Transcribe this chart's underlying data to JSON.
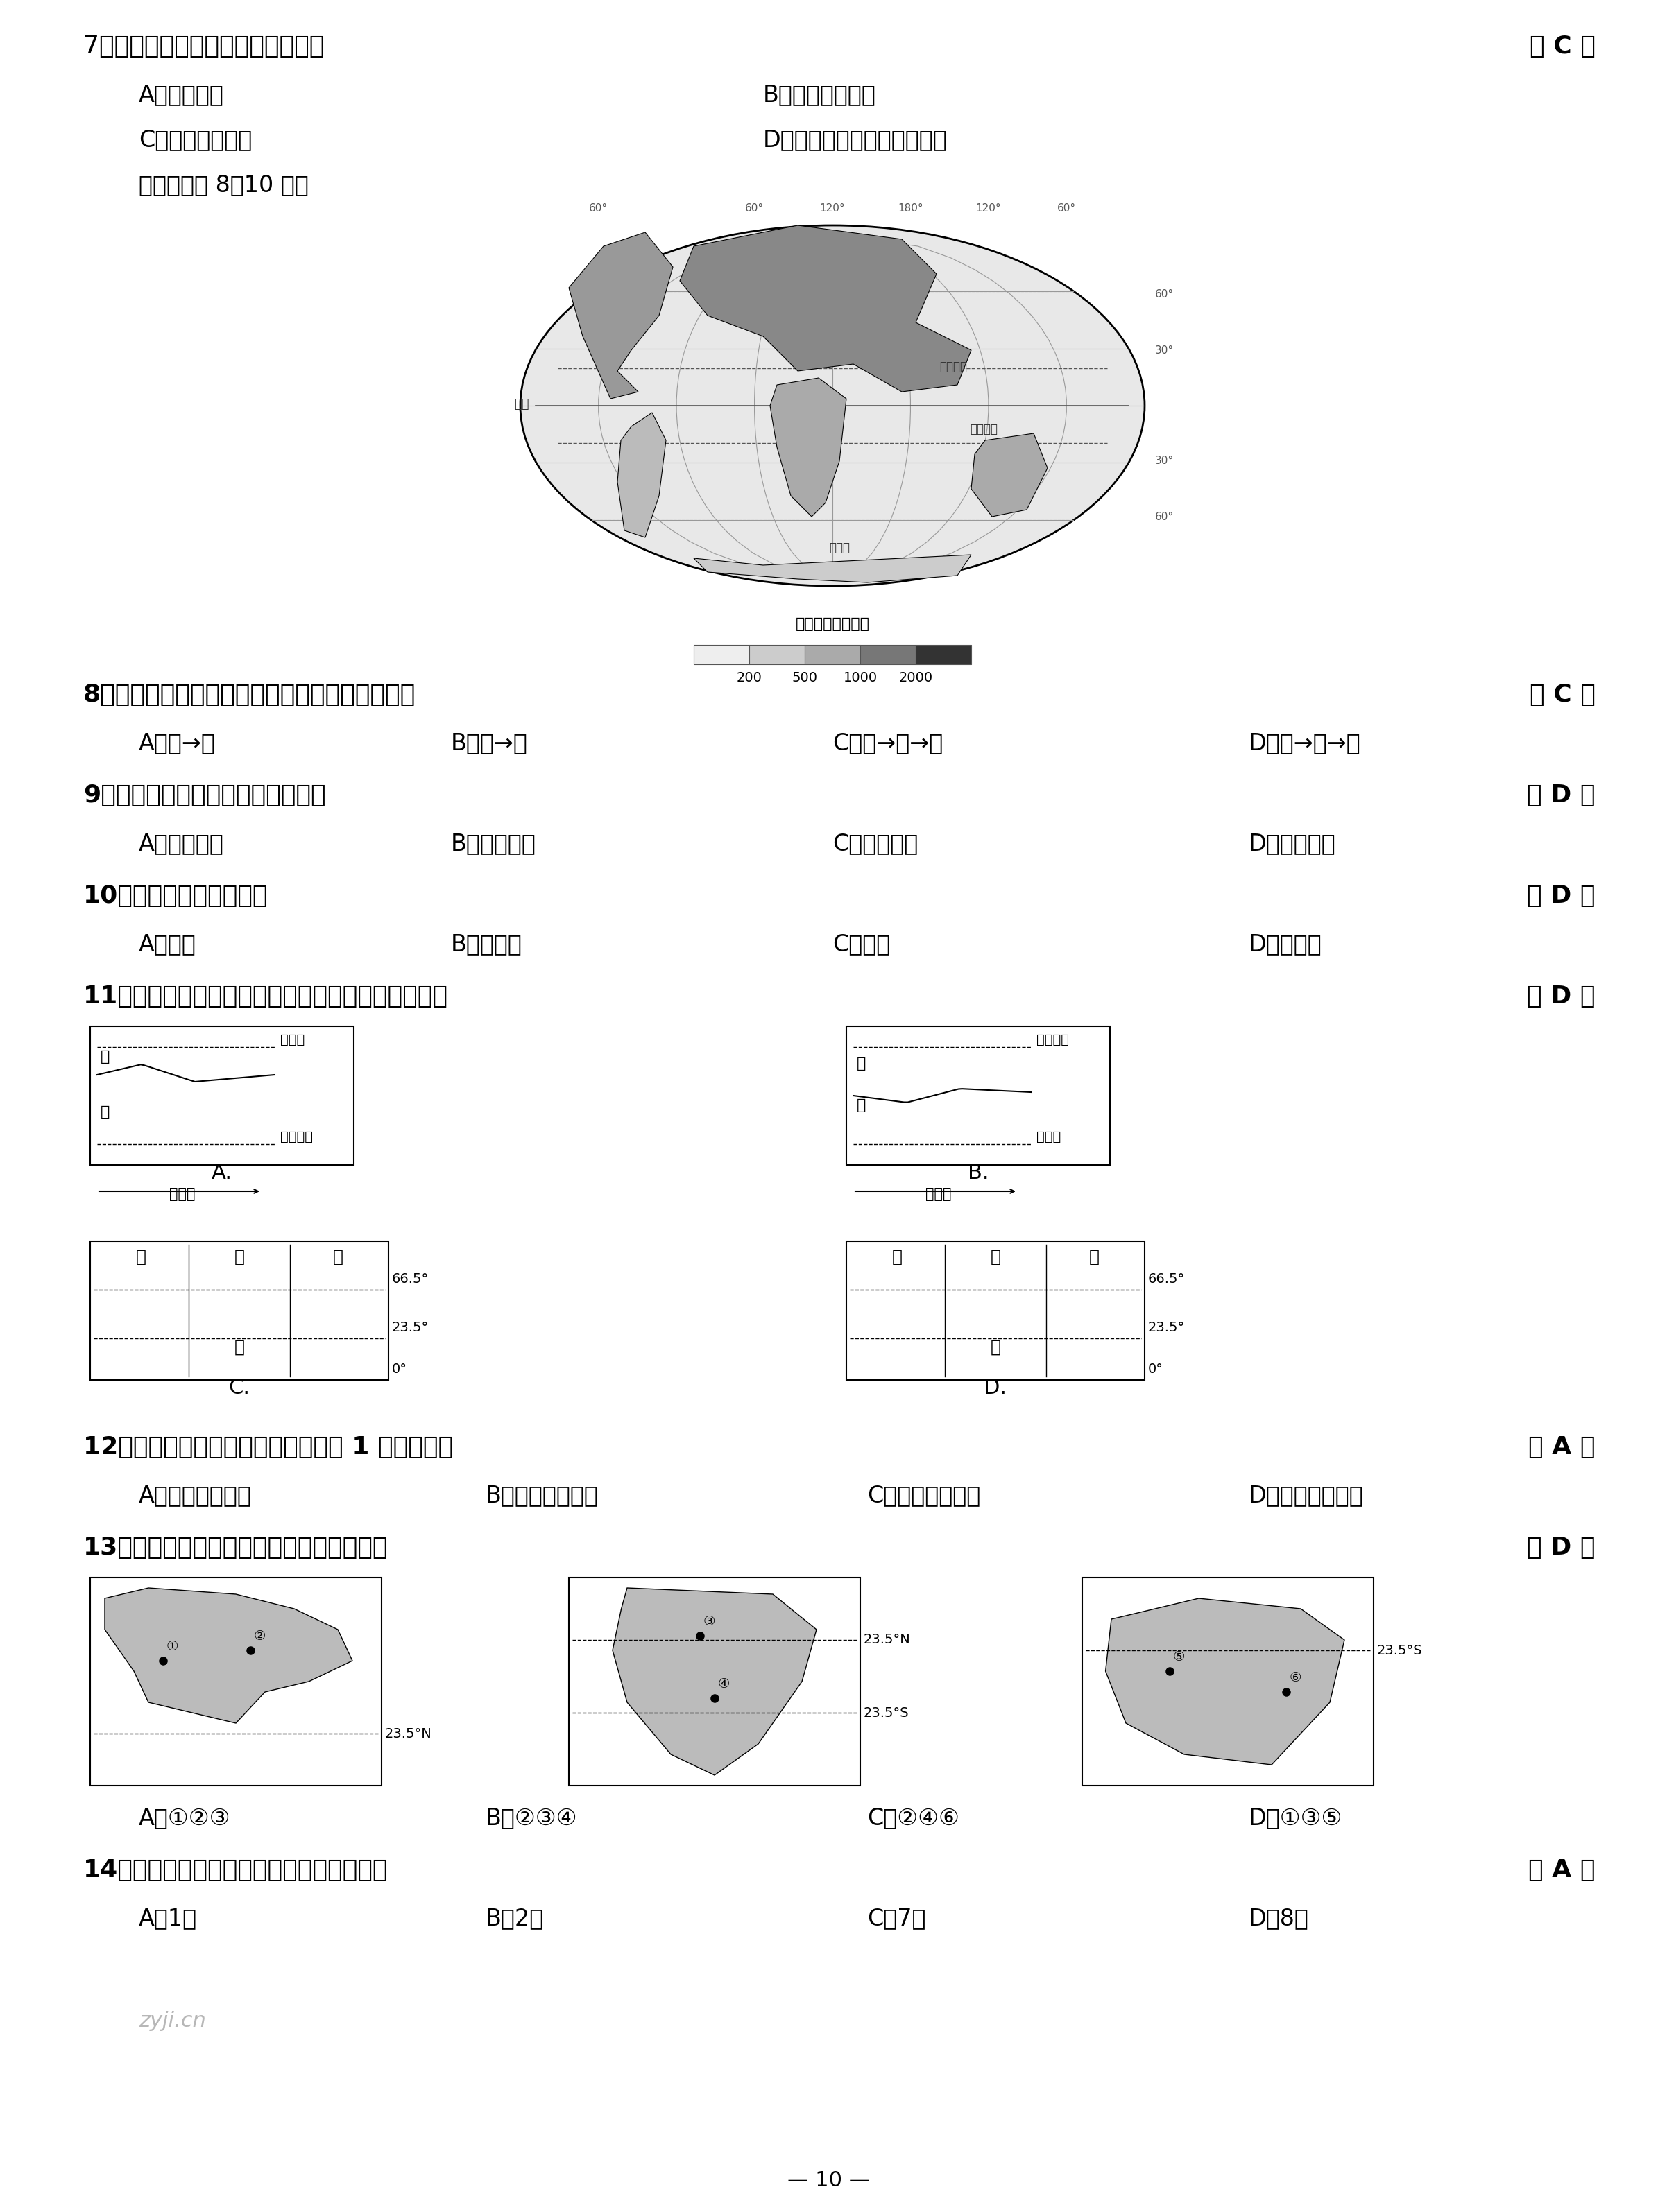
{
  "page_number": "10",
  "background_color": "#ffffff",
  "text_color": "#000000",
  "questions": [
    {
      "number": "7",
      "text": "下列地区中，年降水量最多的是",
      "answer": "C",
      "options": [
        {
          "label": "A",
          "text": "极地地区"
        },
        {
          "label": "B",
          "text": "青藏高原地区"
        },
        {
          "label": "C",
          "text": "亚洲的东南部"
        },
        {
          "label": "D",
          "text": "北回归线附近的大陆西岸"
        }
      ],
      "has_instruction": true,
      "instruction": "读图，完成 8～10 题。"
    },
    {
      "number": "8",
      "text": "亚欧大陆的温带地区自西向东降水变化规律是",
      "answer": "C",
      "options": [
        {
          "label": "A",
          "text": "多→少"
        },
        {
          "label": "B",
          "text": "少→多"
        },
        {
          "label": "C",
          "text": "多→少→多"
        },
        {
          "label": "D",
          "text": "少→多→少"
        }
      ]
    },
    {
      "number": "9",
      "text": "影响这一规律形成的主要因素是",
      "answer": "D",
      "options": [
        {
          "label": "A",
          "text": "纬度因素"
        },
        {
          "label": "B",
          "text": "地形因素"
        },
        {
          "label": "C",
          "text": "洋流因素"
        },
        {
          "label": "D",
          "text": "海陆因素"
        }
      ]
    },
    {
      "number": "10",
      "text": "降水量最少的大洲是",
      "answer": "D",
      "options": [
        {
          "label": "A",
          "text": "非洲"
        },
        {
          "label": "B",
          "text": "大洋洲"
        },
        {
          "label": "C",
          "text": "亚洲"
        },
        {
          "label": "D",
          "text": "南极洲"
        }
      ]
    },
    {
      "number": "11",
      "text": "关于世界气温、降水的分布规律，图示正确的是",
      "answer": "D",
      "options": [
        {
          "label": "A",
          "text": ""
        },
        {
          "label": "B",
          "text": ""
        },
        {
          "label": "C",
          "text": ""
        },
        {
          "label": "D",
          "text": ""
        }
      ],
      "has_diagrams": true
    },
    {
      "number": "12",
      "text": "一般来说，北温带同纬度的地区 1 月平均气温",
      "answer": "A",
      "options": [
        {
          "label": "A",
          "text": "海洋高于陆地"
        },
        {
          "label": "B",
          "text": "陆地高于海洋"
        },
        {
          "label": "C",
          "text": "高原高于平原"
        },
        {
          "label": "D",
          "text": "荒漠高于森林"
        }
      ]
    },
    {
      "number": "13",
      "text": "下列大洲中加点的地区，降水稀少的是",
      "answer": "D",
      "options": [
        {
          "label": "A",
          "text": "①②③"
        },
        {
          "label": "B",
          "text": "②③④"
        },
        {
          "label": "C",
          "text": "②④⑥"
        },
        {
          "label": "D",
          "text": "①③⑤"
        }
      ],
      "has_maps": true
    },
    {
      "number": "14",
      "text": "一年之中，北半球陆地最低气温出现在",
      "answer": "A",
      "options": [
        {
          "label": "A",
          "text": "1月"
        },
        {
          "label": "B",
          "text": "2月"
        },
        {
          "label": "C",
          "text": "7月"
        },
        {
          "label": "D",
          "text": "8月"
        }
      ]
    }
  ],
  "watermark": "zyji.cn"
}
